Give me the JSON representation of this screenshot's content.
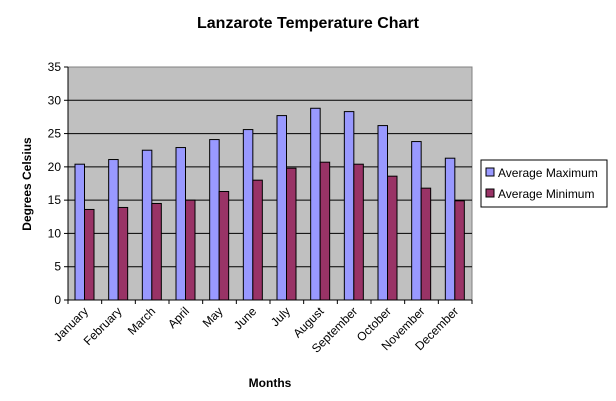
{
  "chart_data": {
    "type": "bar",
    "title": "Lanzarote Temperature Chart",
    "xlabel": "Months",
    "ylabel": "Degrees Celsius",
    "ylim": [
      0,
      35
    ],
    "yticks": [
      0,
      5,
      10,
      15,
      20,
      25,
      30,
      35
    ],
    "grid": true,
    "legend_position": "right",
    "categories": [
      "January",
      "February",
      "March",
      "April",
      "May",
      "June",
      "July",
      "August",
      "September",
      "October",
      "November",
      "December"
    ],
    "series": [
      {
        "name": "Average Maximum",
        "color": "#9999FF",
        "values": [
          20.4,
          21.1,
          22.5,
          22.9,
          24.1,
          25.6,
          27.7,
          28.8,
          28.3,
          26.2,
          23.8,
          21.3
        ]
      },
      {
        "name": "Average Minimum",
        "color": "#993366",
        "values": [
          13.6,
          13.9,
          14.5,
          15.0,
          16.3,
          18.0,
          19.8,
          20.7,
          20.4,
          18.6,
          16.8,
          14.9
        ]
      }
    ],
    "plot_background": "#C0C0C0"
  }
}
